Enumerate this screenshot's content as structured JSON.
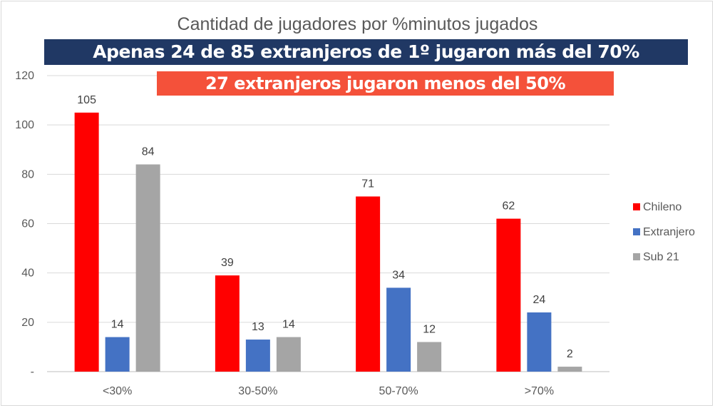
{
  "chart_data": {
    "type": "bar",
    "title": "Cantidad de jugadores por %minutos jugados",
    "annotations": [
      "Apenas 24 de 85 extranjeros de 1º jugaron más del 70%",
      "27 extranjeros jugaron menos del 50%"
    ],
    "categories": [
      "<30%",
      "30-50%",
      "50-70%",
      ">70%"
    ],
    "series": [
      {
        "name": "Chileno",
        "values": [
          105,
          39,
          71,
          62
        ],
        "color": "#ff0000"
      },
      {
        "name": "Extranjero",
        "values": [
          14,
          13,
          34,
          24
        ],
        "color": "#4472c4"
      },
      {
        "name": "Sub 21",
        "values": [
          84,
          14,
          12,
          2
        ],
        "color": "#a5a5a5"
      }
    ],
    "ylim": [
      0,
      120
    ],
    "yticks": [
      "-",
      "20",
      "40",
      "60",
      "80",
      "100",
      "120"
    ],
    "grid": true,
    "legend": "right",
    "annotation_colors": {
      "banner_blue": "#203864",
      "banner_red": "#f4513a"
    }
  }
}
